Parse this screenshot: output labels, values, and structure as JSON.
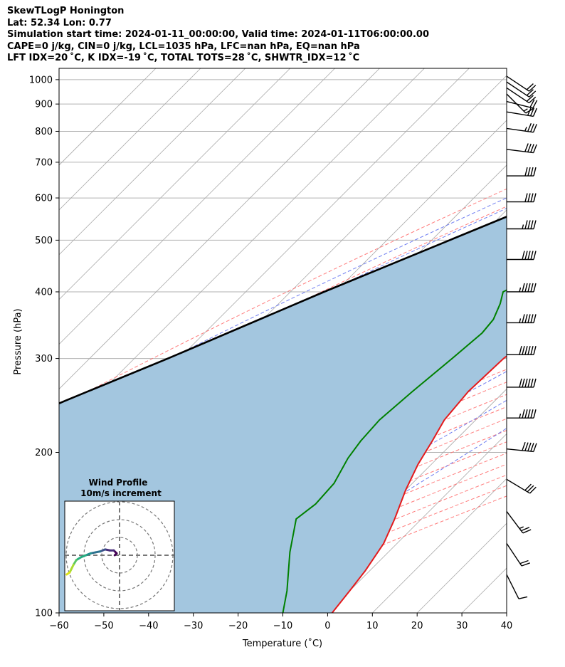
{
  "header": {
    "line1": "SkewTLogP Honington",
    "line2": "Lat: 52.34   Lon: 0.77",
    "line3": "Simulation start time: 2024-01-11_00:00:00, Valid time: 2024-01-11T06:00:00.00",
    "line4": "CAPE=0 j/kg, CIN=0 j/kg, LCL=1035 hPa, LFC=nan hPa, EQ=nan hPa",
    "line5": "LFT IDX=20 ˚C, K IDX=-19 ˚C, TOTAL TOTS=28 ˚C, SHWTR_IDX=12 ˚C"
  },
  "colors": {
    "temperature": "#e41a1c",
    "dewpoint": "#008000",
    "parcel": "#000000",
    "shade": "#a3c6df",
    "dry_adiabat": "#ff6666",
    "moist_adiabat": "#5566ee",
    "mixing_ratio": "#9933cc",
    "isotherm": "#aaaaaa"
  },
  "chart_data": {
    "type": "line",
    "xlabel": "Temperature (˚C)",
    "ylabel": "Pressure (hPa)",
    "xlim": [
      -60,
      40
    ],
    "ylim": [
      1050,
      100
    ],
    "y_scale": "log",
    "x_ticks": [
      -60,
      -50,
      -40,
      -30,
      -20,
      -10,
      0,
      10,
      20,
      30,
      40
    ],
    "x_tick_labels": [
      "−60",
      "−50",
      "−40",
      "−30",
      "−20",
      "−10",
      "0",
      "10",
      "20",
      "30",
      "40"
    ],
    "y_ticks": [
      1000,
      900,
      800,
      700,
      600,
      500,
      400,
      300,
      200,
      100
    ],
    "y_tick_labels": [
      "1000",
      "900",
      "800",
      "700",
      "600",
      "500",
      "400",
      "300",
      "200",
      "100"
    ],
    "grid": true,
    "series": [
      {
        "kind": "temperature",
        "points": [
          [
            1025,
            -0.5
          ],
          [
            1010,
            2.5
          ],
          [
            990,
            1.5
          ],
          [
            960,
            3.5
          ],
          [
            930,
            5.5
          ],
          [
            890,
            6.5
          ],
          [
            850,
            6.2
          ],
          [
            800,
            4.5
          ],
          [
            750,
            3.5
          ],
          [
            700,
            2.5
          ],
          [
            650,
            1.0
          ],
          [
            600,
            -1.0
          ],
          [
            550,
            -4.5
          ],
          [
            500,
            -6.5
          ],
          [
            450,
            -9.5
          ],
          [
            400,
            -11.5
          ],
          [
            350,
            -15.0
          ],
          [
            300,
            -17.5
          ],
          [
            260,
            -18.0
          ],
          [
            230,
            -17.0
          ],
          [
            210,
            -15.0
          ],
          [
            190,
            -13.0
          ],
          [
            170,
            -10.0
          ],
          [
            150,
            -6.0
          ],
          [
            135,
            -3.0
          ],
          [
            120,
            -1.0
          ],
          [
            110,
            0.0
          ],
          [
            100,
            1.0
          ]
        ]
      },
      {
        "kind": "dewpoint",
        "points": [
          [
            1025,
            -0.5
          ],
          [
            1000,
            0.5
          ],
          [
            975,
            1.0
          ],
          [
            960,
            0.5
          ],
          [
            945,
            -0.5
          ],
          [
            930,
            -9.0
          ],
          [
            920,
            -18.0
          ],
          [
            910,
            -24.0
          ],
          [
            895,
            -27.5
          ],
          [
            850,
            -20.0
          ],
          [
            825,
            -14.0
          ],
          [
            795,
            -14.0
          ],
          [
            770,
            -17.0
          ],
          [
            720,
            -22.0
          ],
          [
            670,
            -23.0
          ],
          [
            610,
            -22.0
          ],
          [
            580,
            -21.0
          ],
          [
            500,
            -23.0
          ],
          [
            450,
            -26.5
          ],
          [
            400,
            -32.5
          ],
          [
            380,
            -30.5
          ],
          [
            355,
            -28.5
          ],
          [
            335,
            -28.0
          ],
          [
            300,
            -29.0
          ],
          [
            260,
            -30.5
          ],
          [
            230,
            -31.5
          ],
          [
            210,
            -31.0
          ],
          [
            195,
            -30.0
          ],
          [
            175,
            -27.5
          ],
          [
            160,
            -27.0
          ],
          [
            150,
            -28.0
          ],
          [
            130,
            -22.0
          ],
          [
            110,
            -14.0
          ],
          [
            100,
            -10.0
          ]
        ]
      },
      {
        "kind": "parcel",
        "points": [
          [
            1025,
            -0.5
          ],
          [
            950,
            -7.0
          ],
          [
            900,
            -11.5
          ],
          [
            850,
            -16.0
          ],
          [
            800,
            -21.0
          ],
          [
            700,
            -31.0
          ],
          [
            600,
            -42.5
          ],
          [
            500,
            -56.0
          ],
          [
            400,
            -72.5
          ],
          [
            300,
            -92.5
          ],
          [
            250,
            -106.0
          ],
          [
            200,
            -121.0
          ],
          [
            150,
            -140.0
          ],
          [
            100,
            -168.0
          ]
        ]
      }
    ],
    "wind_barbs": [
      {
        "p": 1015,
        "u": -15,
        "v": 10
      },
      {
        "p": 990,
        "u": -15,
        "v": 10
      },
      {
        "p": 965,
        "u": -15,
        "v": 10
      },
      {
        "p": 940,
        "u": -10,
        "v": 10
      },
      {
        "p": 910,
        "u": -20,
        "v": 5
      },
      {
        "p": 870,
        "u": -30,
        "v": 5
      },
      {
        "p": 810,
        "u": -35,
        "v": 5
      },
      {
        "p": 740,
        "u": -40,
        "v": 5
      },
      {
        "p": 660,
        "u": -40,
        "v": 0
      },
      {
        "p": 590,
        "u": -40,
        "v": 0
      },
      {
        "p": 525,
        "u": -45,
        "v": 0
      },
      {
        "p": 460,
        "u": -50,
        "v": 0
      },
      {
        "p": 400,
        "u": -55,
        "v": 0
      },
      {
        "p": 350,
        "u": -55,
        "v": 0
      },
      {
        "p": 305,
        "u": -60,
        "v": 0
      },
      {
        "p": 265,
        "u": -60,
        "v": 0
      },
      {
        "p": 232,
        "u": -55,
        "v": 0
      },
      {
        "p": 203,
        "u": -50,
        "v": 5
      },
      {
        "p": 178,
        "u": -25,
        "v": 15
      },
      {
        "p": 155,
        "u": -15,
        "v": 20
      },
      {
        "p": 135,
        "u": -10,
        "v": 15
      },
      {
        "p": 118,
        "u": -5,
        "v": 10
      }
    ],
    "hodograph": {
      "title": "Wind Profile",
      "subtitle": "10m/s increment",
      "ring_speeds": [
        10,
        20,
        30
      ],
      "points": [
        [
          -5,
          0
        ],
        [
          -3,
          2
        ],
        [
          -6,
          5
        ],
        [
          -10,
          5
        ],
        [
          -15,
          6
        ],
        [
          -20,
          4
        ],
        [
          -25,
          3
        ],
        [
          -30,
          2
        ],
        [
          -35,
          0
        ],
        [
          -40,
          -2
        ],
        [
          -45,
          -5
        ],
        [
          -48,
          -10
        ],
        [
          -50,
          -14
        ],
        [
          -52,
          -18
        ],
        [
          -55,
          -20
        ]
      ]
    }
  }
}
